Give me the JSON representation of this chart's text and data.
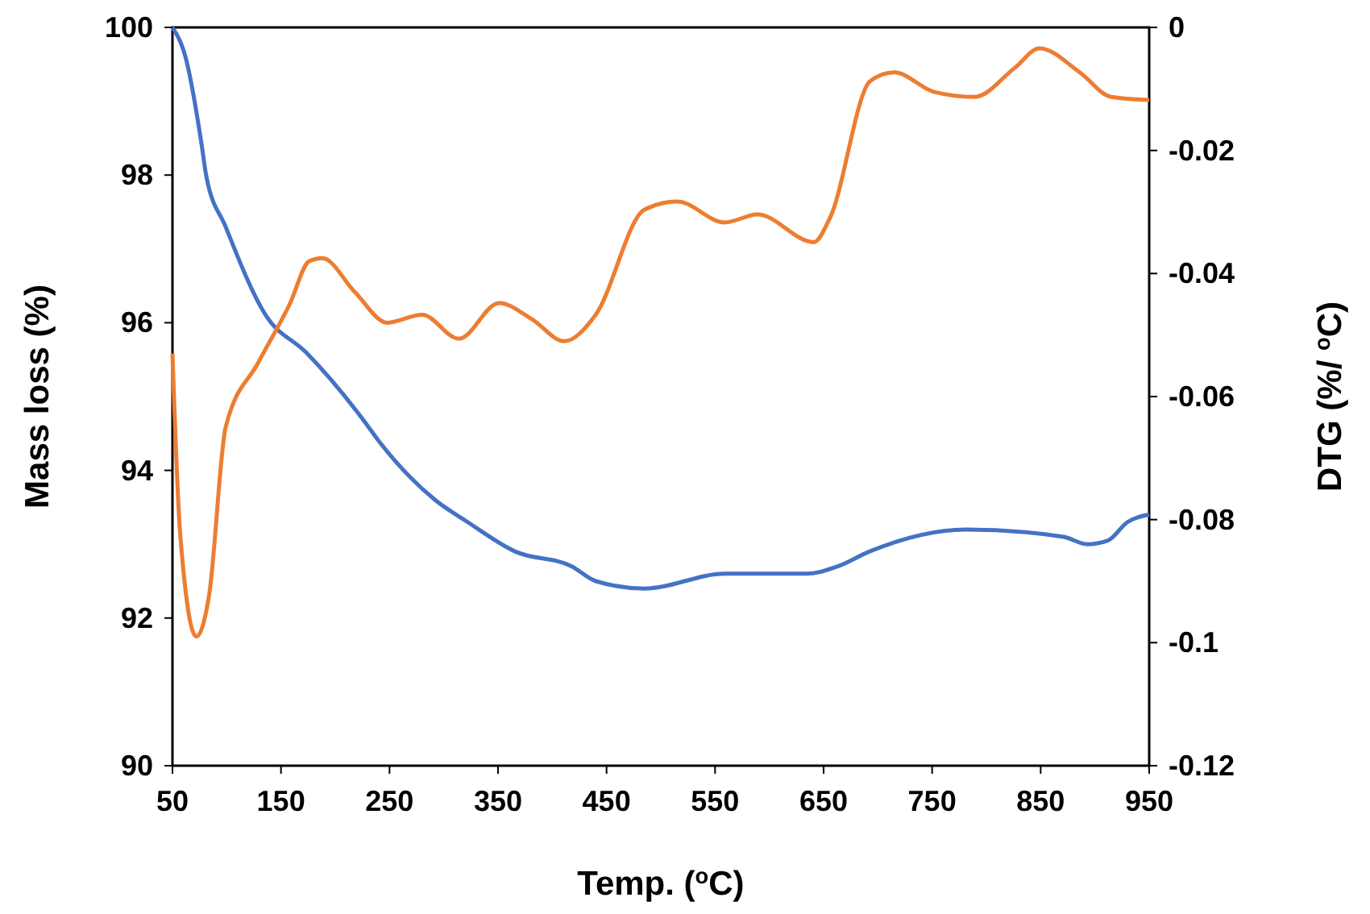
{
  "chart_data": {
    "type": "line",
    "xlabel": "Temp. ($^{o}$C)",
    "ylabel": "Mass loss (%)",
    "y2label": "DTG (%/ $^{o}$C)",
    "xlim": [
      50,
      950
    ],
    "xticks": [
      50,
      150,
      250,
      350,
      450,
      550,
      650,
      750,
      850,
      950
    ],
    "ylim": [
      90,
      100
    ],
    "yticks": [
      90,
      92,
      94,
      96,
      98,
      100
    ],
    "y2lim": [
      -0.12,
      0
    ],
    "y2ticks": [
      -0.12,
      -0.1,
      -0.08,
      -0.06,
      -0.04,
      -0.02,
      0
    ],
    "grid": false,
    "marker": "none",
    "line_style": "solid",
    "series": [
      {
        "color": "#4472c4",
        "x": [
          50,
          62,
          77,
          81,
          99,
          136,
          173,
          225,
          240,
          292,
          322,
          366,
          418,
          440,
          485,
          559,
          634,
          663,
          692,
          781,
          871,
          893,
          912,
          930,
          950
        ],
        "values": [
          100,
          99.6,
          98.4,
          98.0,
          97.3,
          96.1,
          95.6,
          94.7,
          94.4,
          93.6,
          93.3,
          92.9,
          92.7,
          92.5,
          92.4,
          92.6,
          92.6,
          92.7,
          92.9,
          93.2,
          93.1,
          93.0,
          93.05,
          93.3,
          93.4
        ]
      },
      {
        "color": "#ed7d31",
        "axis": "y2",
        "x": [
          50,
          57,
          72,
          84,
          99,
          129,
          158,
          176,
          188,
          218,
          248,
          280,
          314,
          351,
          381,
          411,
          440,
          485,
          515,
          559,
          589,
          641,
          656,
          693,
          715,
          752,
          789,
          826,
          849,
          886,
          915,
          950
        ],
        "values": [
          -0.053,
          -0.082,
          -0.099,
          -0.092,
          -0.065,
          -0.0545,
          -0.045,
          -0.038,
          -0.0375,
          -0.043,
          -0.048,
          -0.0467,
          -0.0506,
          -0.0448,
          -0.0474,
          -0.051,
          -0.0467,
          -0.0296,
          -0.0283,
          -0.0317,
          -0.0304,
          -0.0349,
          -0.0309,
          -0.0087,
          -0.0073,
          -0.0105,
          -0.0113,
          -0.0066,
          -0.0034,
          -0.0073,
          -0.0113,
          -0.0118
        ]
      }
    ]
  }
}
